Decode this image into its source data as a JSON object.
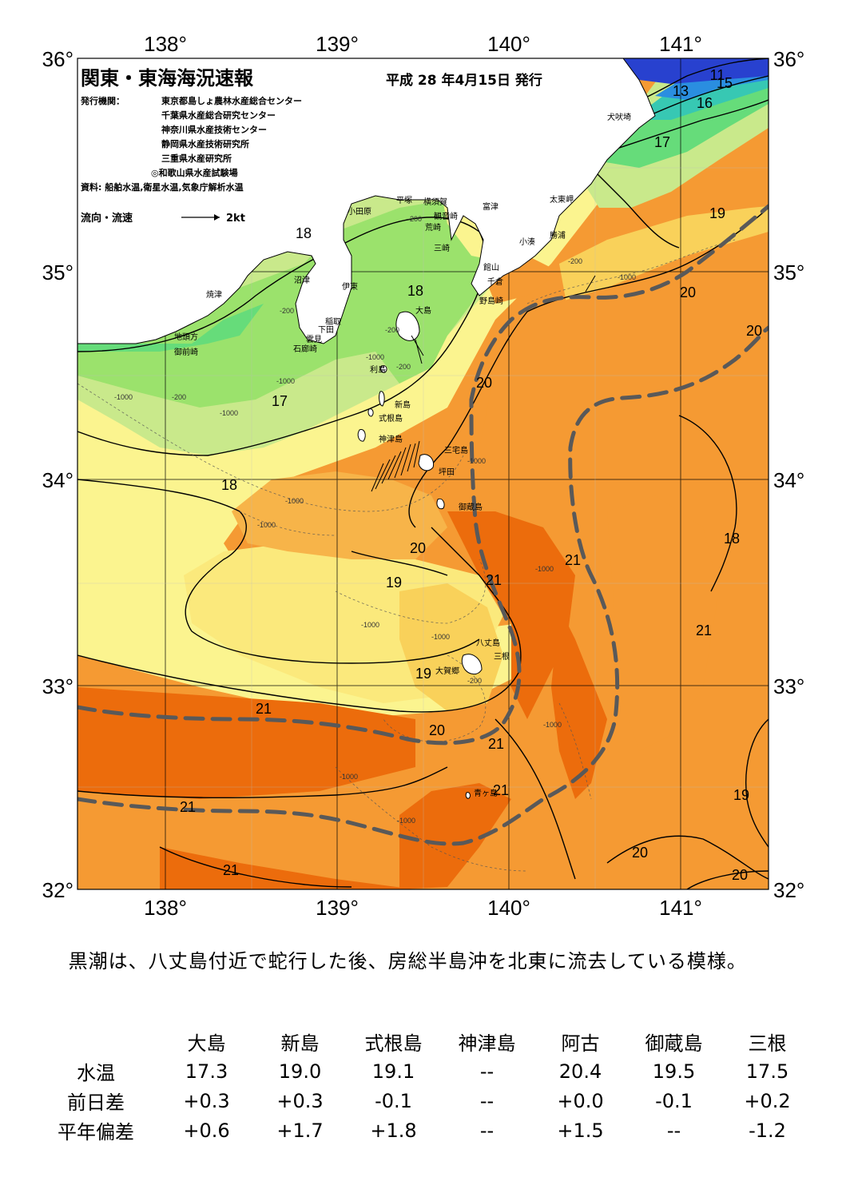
{
  "header": {
    "title": "関東・東海海況速報",
    "issue_date": "平成 28 年4月15日 発行",
    "issuer_label": "発行機関：",
    "issuers": [
      "東京都島しょ農林水産総合センター",
      "千葉県水産総合研究センター",
      "神奈川県水産技術センター",
      "静岡県水産技術研究所",
      "三重県水産研究所",
      "◎和歌山県水産試験場"
    ],
    "sources": "資料: 船舶水温,衛星水温,気象庁解析水温",
    "legend_label": "流向・流速",
    "legend_speed": "2kt"
  },
  "axes": {
    "lon_labels": [
      "138°",
      "139°",
      "140°",
      "141°"
    ],
    "lat_labels": [
      "36°",
      "35°",
      "34°",
      "33°",
      "32°"
    ]
  },
  "isotherm_labels": [
    "11",
    "13",
    "15",
    "16",
    "17",
    "18",
    "18",
    "19",
    "20",
    "20",
    "20",
    "17",
    "18",
    "20",
    "21",
    "21",
    "18",
    "19",
    "21",
    "19",
    "21",
    "20",
    "21",
    "21",
    "19",
    "21",
    "21",
    "20",
    "20"
  ],
  "places": [
    "犬吠埼",
    "太東岬",
    "勝浦",
    "小湊",
    "平塚",
    "横須賀",
    "観音崎",
    "荒崎",
    "富津",
    "三崎",
    "館山",
    "千倉",
    "野島崎",
    "小田原",
    "沼津",
    "伊東",
    "焼津",
    "稲取",
    "下田",
    "雲見",
    "石廊崎",
    "地頭方",
    "御前崎",
    "大島",
    "利島",
    "新島",
    "式根島",
    "神津島",
    "三宅島",
    "坪田",
    "御蔵島",
    "八丈島",
    "三根",
    "大賀郷",
    "青ヶ島"
  ],
  "depth_labels": [
    "-200",
    "-200",
    "-1000",
    "-200",
    "-1000",
    "-1000",
    "-200",
    "-1000",
    "-200",
    "-200",
    "-1000",
    "-1000",
    "-1000",
    "-1000",
    "-1000",
    "-1000",
    "-1000",
    "-200",
    "-1000",
    "-1000",
    "-1000"
  ],
  "summary": "黒潮は、八丈島付近で蛇行した後、房総半島沖を北東に流去している模様。",
  "table": {
    "stations": [
      "大島",
      "新島",
      "式根島",
      "神津島",
      "阿古",
      "御蔵島",
      "三根"
    ],
    "rows": [
      {
        "label": "水温",
        "values": [
          "17.3",
          "19.0",
          "19.1",
          "--",
          "20.4",
          "19.5",
          "17.5"
        ]
      },
      {
        "label": "前日差",
        "values": [
          "+0.3",
          "+0.3",
          "-0.1",
          "--",
          "+0.0",
          "-0.1",
          "+0.2"
        ]
      },
      {
        "label": "平年偏差",
        "values": [
          "+0.6",
          "+1.7",
          "+1.8",
          "--",
          "+1.5",
          "--",
          "-1.2"
        ]
      }
    ]
  },
  "colors": {
    "t21": "#ec6c0c",
    "t20": "#f59a33",
    "t19_5": "#f7b449",
    "t19": "#f9d15a",
    "t18_5": "#fbe97c",
    "t18": "#fbf48f",
    "t17": "#c9e98b",
    "t16": "#9be26c",
    "t15": "#66dc7a",
    "t14": "#37c8b3",
    "t13": "#2a8ee0",
    "t11": "#2841cf",
    "land": "#ffffff",
    "kuroshio_axis": "#595959"
  }
}
